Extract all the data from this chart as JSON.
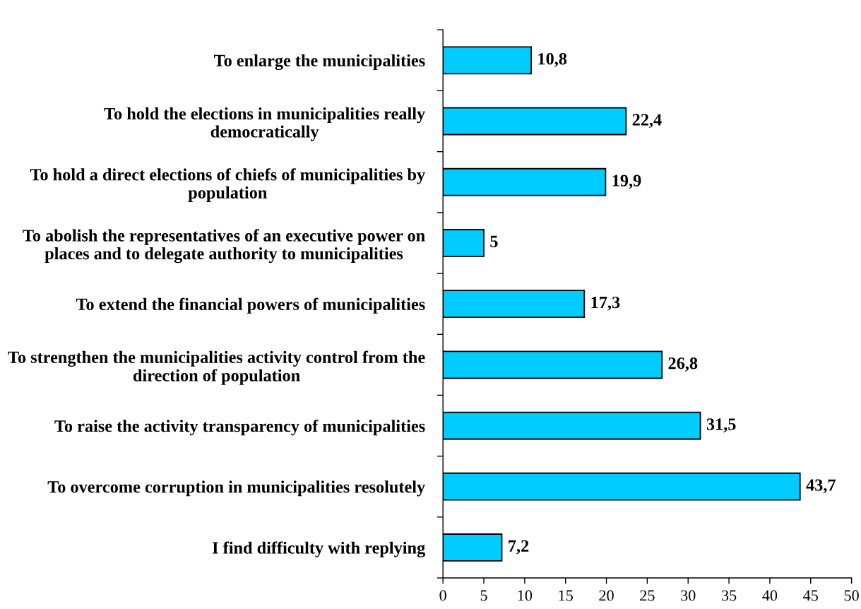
{
  "chart_data": {
    "type": "bar",
    "orientation": "horizontal",
    "categories": [
      "To enlarge the municipalities",
      "To hold the elections in municipalities really\ndemocratically",
      "To hold a direct elections of chiefs of municipalities by\npopulation",
      "To abolish the representatives of an executive power on\nplaces and to delegate authority to municipalities",
      "To extend the financial powers of municipalities",
      "To strengthen the municipalities activity control from the\ndirection of population",
      "To raise the activity transparency of municipalities",
      "To overcome corruption in municipalities resolutely",
      "I find difficulty with replying"
    ],
    "values": [
      10.8,
      22.4,
      19.9,
      5,
      17.3,
      26.8,
      31.5,
      43.7,
      7.2
    ],
    "value_labels": [
      "10,8",
      "22,4",
      "19,9",
      "5",
      "17,3",
      "26,8",
      "31,5",
      "43,7",
      "7,2"
    ],
    "color": "#00ccff",
    "xlim": [
      0,
      50
    ],
    "xticks": [
      0,
      5,
      10,
      15,
      20,
      25,
      30,
      35,
      40,
      45,
      50
    ]
  }
}
